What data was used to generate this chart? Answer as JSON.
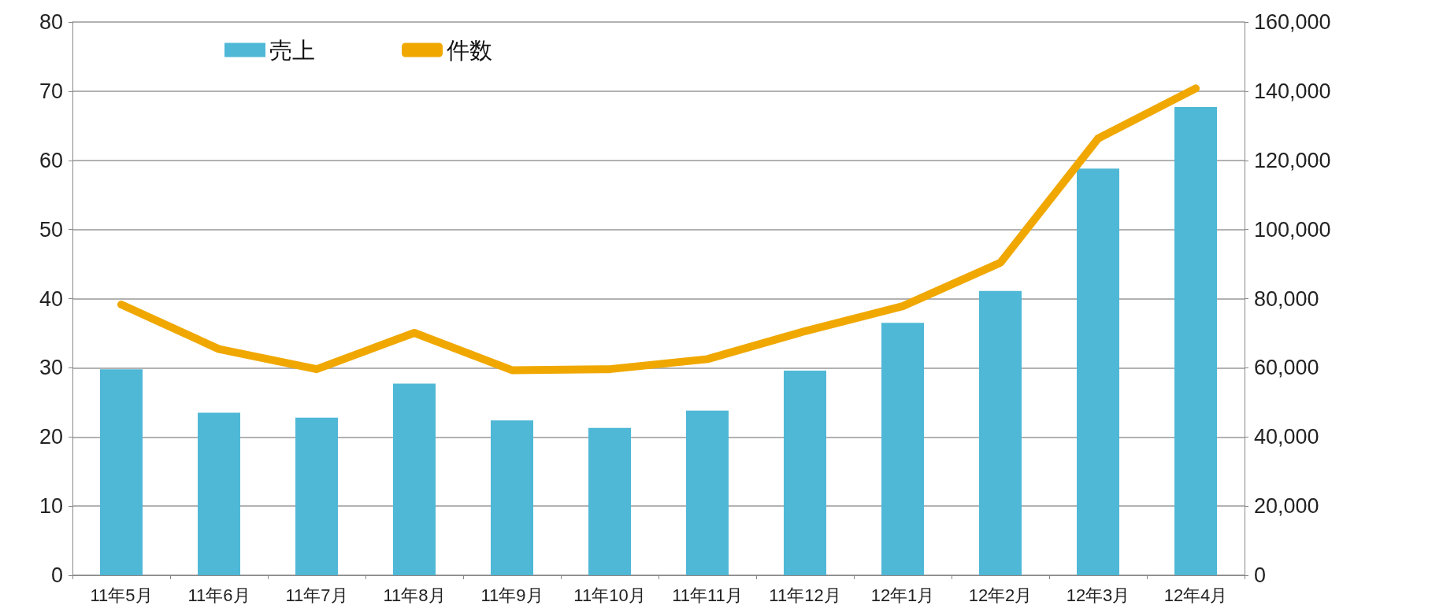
{
  "chart_data": {
    "type": "bar",
    "categories": [
      "11年5月",
      "11年6月",
      "11年7月",
      "11年8月",
      "11年9月",
      "11年10月",
      "11年11月",
      "11年12月",
      "12年1月",
      "12年2月",
      "12年3月",
      "12年4月"
    ],
    "series": [
      {
        "name": "売上",
        "color": "#4fb8d6",
        "values": [
          29.8,
          23.5,
          22.8,
          27.7,
          22.4,
          21.3,
          23.8,
          29.6,
          36.5,
          41.1,
          58.8,
          67.7
        ]
      },
      {
        "name": "件数",
        "type": "line",
        "axis": "y2",
        "color": "#f0a800",
        "values": [
          78300,
          65400,
          59600,
          70100,
          59300,
          59600,
          62500,
          70600,
          77800,
          90400,
          126300,
          140800
        ]
      }
    ],
    "ylim": [
      0,
      80
    ],
    "yticks": [
      0,
      10,
      20,
      30,
      40,
      50,
      60,
      70,
      80
    ],
    "y2lim": [
      0,
      160000
    ],
    "y2ticks": [
      {
        "value": 0,
        "label": "0"
      },
      {
        "value": 20000,
        "label": "20,000"
      },
      {
        "value": 40000,
        "label": "40,000"
      },
      {
        "value": 60000,
        "label": "60,000"
      },
      {
        "value": 80000,
        "label": "80,000"
      },
      {
        "value": 100000,
        "label": "100,000"
      },
      {
        "value": 120000,
        "label": "120,000"
      },
      {
        "value": 140000,
        "label": "140,000"
      },
      {
        "value": 160000,
        "label": "160,000"
      }
    ],
    "grid": "y",
    "legend": "top left"
  }
}
